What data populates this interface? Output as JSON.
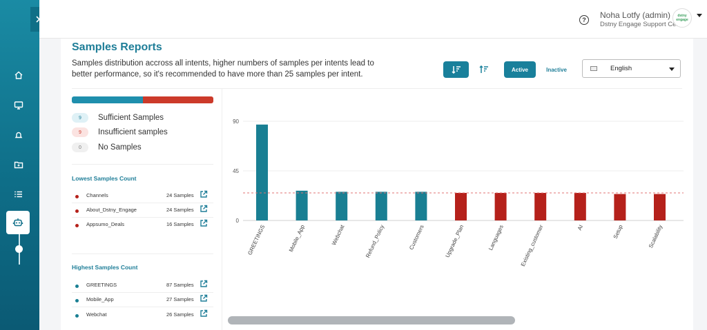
{
  "header": {
    "user_name": "Noha Lotfy (admin)",
    "org": "Dstny Engage Support Centre",
    "avatar_text": "dstny engage"
  },
  "sidebar": {
    "items": [
      {
        "icon": "home-icon"
      },
      {
        "icon": "monitor-icon"
      },
      {
        "icon": "bell-icon"
      },
      {
        "icon": "folder-icon"
      },
      {
        "icon": "list-icon"
      },
      {
        "icon": "bot-icon",
        "active": true
      }
    ]
  },
  "page": {
    "title": "Samples Reports",
    "description": "Samples distribution accross all intents, higher numbers of samples per intents lead to better performance, so it's recommended to have more than 25 samples per intent.",
    "controls": {
      "active_label": "Active",
      "inactive_label": "Inactive",
      "language": "English"
    }
  },
  "summary": {
    "sufficient": {
      "count": "9",
      "label": "Sufficient Samples"
    },
    "insufficient": {
      "count": "9",
      "label": "Insufficient samples"
    },
    "none": {
      "count": "0",
      "label": "No Samples"
    }
  },
  "lowest": {
    "title": "Lowest Samples Count",
    "items": [
      {
        "name": "Channels",
        "count": "24 Samples"
      },
      {
        "name": "About_Dstny_Engage",
        "count": "24 Samples"
      },
      {
        "name": "Appsumo_Deals",
        "count": "16 Samples"
      }
    ]
  },
  "highest": {
    "title": "Highest Samples Count",
    "items": [
      {
        "name": "GREETINGS",
        "count": "87 Samples"
      },
      {
        "name": "Mobile_App",
        "count": "27 Samples"
      },
      {
        "name": "Webchat",
        "count": "26 Samples"
      }
    ]
  },
  "colors": {
    "sufficient": "#197f93",
    "insufficient": "#b5211b",
    "threshold": "#e07070",
    "accent": "#1f7e98"
  },
  "chart_data": {
    "type": "bar",
    "categories": [
      "GREETINGS",
      "Mobile_App",
      "Webchat",
      "Refund_Policy",
      "Customers",
      "Upgrade_Plan",
      "Languages",
      "Existing_customer",
      "AI",
      "Setup",
      "Scalability"
    ],
    "values": [
      87,
      27,
      26,
      26,
      26,
      25,
      25,
      25,
      25,
      24,
      24
    ],
    "status": [
      "sufficient",
      "sufficient",
      "sufficient",
      "sufficient",
      "sufficient",
      "insufficient",
      "insufficient",
      "insufficient",
      "insufficient",
      "insufficient",
      "insufficient"
    ],
    "yticks": [
      0,
      45,
      90
    ],
    "ylim": [
      0,
      90
    ],
    "threshold": 25,
    "grid": true
  }
}
